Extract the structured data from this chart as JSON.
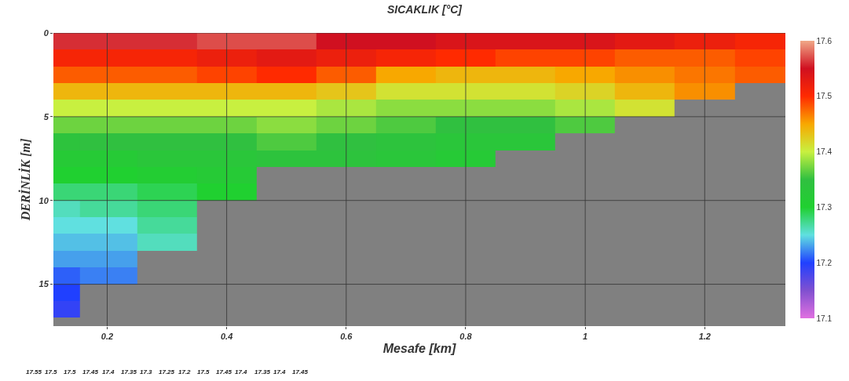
{
  "chart_data": {
    "type": "heatmap",
    "title": "SICAKLIK [°C]",
    "xlabel": "Mesafe [km]",
    "ylabel": "DERİNLİK [m]",
    "x": [
      0.11,
      0.2,
      0.3,
      0.4,
      0.5,
      0.6,
      0.7,
      0.8,
      0.9,
      1.0,
      1.1,
      1.2,
      1.3,
      1.335
    ],
    "y": [
      0.5,
      1.5,
      2.5,
      3.5,
      4.5,
      5.5,
      6.5,
      7.5,
      8.5,
      9.5,
      10.5,
      11.5,
      12.5,
      13.5,
      14.5,
      15.5,
      16.5
    ],
    "cells": [
      [
        17.56,
        17.56,
        17.56,
        17.57,
        17.57,
        17.55,
        17.55,
        17.54,
        17.54,
        17.54,
        17.53,
        17.52,
        17.51,
        17.51
      ],
      [
        17.51,
        17.51,
        17.51,
        17.52,
        17.53,
        17.52,
        17.51,
        17.5,
        17.49,
        17.49,
        17.48,
        17.48,
        17.49,
        17.49
      ],
      [
        17.48,
        17.48,
        17.48,
        17.49,
        17.5,
        17.48,
        17.45,
        17.44,
        17.44,
        17.45,
        17.46,
        17.47,
        17.48,
        17.48
      ],
      [
        17.44,
        17.44,
        17.44,
        17.44,
        17.44,
        17.43,
        17.41,
        17.41,
        17.41,
        17.42,
        17.44,
        17.46,
        null,
        null
      ],
      [
        17.4,
        17.4,
        17.4,
        17.4,
        17.4,
        17.39,
        17.38,
        17.38,
        17.38,
        17.39,
        17.41,
        null,
        null,
        null
      ],
      [
        17.37,
        17.37,
        17.37,
        17.37,
        17.38,
        17.37,
        17.36,
        17.35,
        17.35,
        17.36,
        null,
        null,
        null,
        null
      ],
      [
        17.34,
        17.35,
        17.35,
        17.35,
        17.36,
        17.35,
        17.34,
        17.33,
        17.33,
        null,
        null,
        null,
        null,
        null
      ],
      [
        17.32,
        17.32,
        17.33,
        17.33,
        17.34,
        17.34,
        17.33,
        17.32,
        null,
        null,
        null,
        null,
        null,
        null
      ],
      [
        17.3,
        17.3,
        17.31,
        17.32,
        null,
        null,
        null,
        null,
        null,
        null,
        null,
        null,
        null,
        null
      ],
      [
        17.28,
        17.28,
        17.29,
        17.3,
        null,
        null,
        null,
        null,
        null,
        null,
        null,
        null,
        null,
        null
      ],
      [
        17.26,
        17.27,
        17.28,
        null,
        null,
        null,
        null,
        null,
        null,
        null,
        null,
        null,
        null,
        null
      ],
      [
        17.25,
        17.25,
        17.27,
        null,
        null,
        null,
        null,
        null,
        null,
        null,
        null,
        null,
        null,
        null
      ],
      [
        17.24,
        17.24,
        17.26,
        null,
        null,
        null,
        null,
        null,
        null,
        null,
        null,
        null,
        null,
        null
      ],
      [
        17.23,
        17.23,
        null,
        null,
        null,
        null,
        null,
        null,
        null,
        null,
        null,
        null,
        null,
        null
      ],
      [
        17.21,
        17.22,
        null,
        null,
        null,
        null,
        null,
        null,
        null,
        null,
        null,
        null,
        null,
        null
      ],
      [
        17.2,
        null,
        null,
        null,
        null,
        null,
        null,
        null,
        null,
        null,
        null,
        null,
        null,
        null
      ],
      [
        17.19,
        null,
        null,
        null,
        null,
        null,
        null,
        null,
        null,
        null,
        null,
        null,
        null,
        null
      ]
    ],
    "clim": [
      17.1,
      17.6
    ],
    "cticks": [
      17.1,
      17.2,
      17.3,
      17.4,
      17.5,
      17.6
    ],
    "xlim": [
      0.11,
      1.335
    ],
    "xticks": [
      0.2,
      0.4,
      0.6,
      0.8,
      1,
      1.2
    ],
    "ylim": [
      17.5,
      0
    ],
    "yticks": [
      0,
      5,
      10,
      15
    ],
    "grid": true,
    "annotations": [
      "17.55",
      "17.5",
      "17.5",
      "17.45",
      "17.4",
      "17.35",
      "17.3",
      "17.25",
      "17.2",
      "17.5",
      "17.45",
      "17.4",
      "17.35",
      "17.4",
      "17.45"
    ]
  }
}
